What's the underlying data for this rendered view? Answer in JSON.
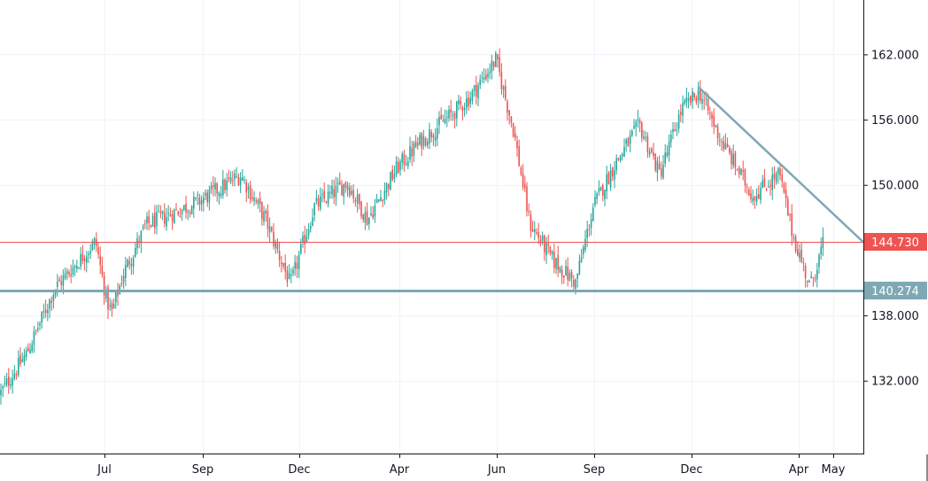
{
  "chart_data": {
    "type": "candlestick",
    "title": "",
    "xlabel": "",
    "ylabel": "",
    "ylim": [
      125.3,
      167.0
    ],
    "grid": true,
    "colors": {
      "up": "#26a69a",
      "down": "#ef5350",
      "grid": "#f0f3fa",
      "axis": "#131722",
      "resistance": "#ef5350",
      "support": "#7ea8b4",
      "trendline": "#7ea8b4"
    },
    "x_ticks": [
      "Jul",
      "Sep",
      "Dec",
      "Apr",
      "Jun",
      "Sep",
      "Dec",
      "Apr",
      "May"
    ],
    "y_ticks": [
      "162.000",
      "156.000",
      "150.000",
      "138.000",
      "132.000"
    ],
    "y_tick_values": [
      162,
      156,
      150,
      138,
      132
    ],
    "horizontal_lines": [
      {
        "price": 144.73,
        "label": "144.730",
        "color": "#ef5350",
        "line_width": 1
      },
      {
        "price": 140.274,
        "label": "140.274",
        "color": "#7ea8b4",
        "line_width": 3
      }
    ],
    "trendline": {
      "start": {
        "date": "Dec",
        "price": 158.9
      },
      "end": {
        "date": "May",
        "price": 144.73
      }
    },
    "price_anchors": [
      {
        "date": "start",
        "close": 130.8
      },
      {
        "date": "",
        "close": 134.5
      },
      {
        "date": "",
        "close": 140.5
      },
      {
        "date": "Jul",
        "close": 144.8
      },
      {
        "date": "",
        "close": 139.5
      },
      {
        "date": "",
        "close": 138.2
      },
      {
        "date": "",
        "close": 142.0
      },
      {
        "date": "",
        "close": 146.3
      },
      {
        "date": "Sep",
        "close": 148.5
      },
      {
        "date": "",
        "close": 150.9
      },
      {
        "date": "",
        "close": 146.8
      },
      {
        "date": "Dec",
        "close": 140.8
      },
      {
        "date": "",
        "close": 148.0
      },
      {
        "date": "",
        "close": 150.2
      },
      {
        "date": "",
        "close": 146.8
      },
      {
        "date": "Apr",
        "close": 151.5
      },
      {
        "date": "",
        "close": 154.0
      },
      {
        "date": "",
        "close": 156.5
      },
      {
        "date": "",
        "close": 158.0
      },
      {
        "date": "Jun",
        "close": 161.5
      },
      {
        "date": "",
        "close": 155.0
      },
      {
        "date": "",
        "close": 146.5
      },
      {
        "date": "",
        "close": 143.0
      },
      {
        "date": "Sep",
        "close": 141.0
      },
      {
        "date": "",
        "close": 148.0
      },
      {
        "date": "",
        "close": 152.0
      },
      {
        "date": "",
        "close": 155.5
      },
      {
        "date": "",
        "close": 151.0
      },
      {
        "date": "Dec",
        "close": 157.0
      },
      {
        "date": "",
        "close": 158.5
      },
      {
        "date": "",
        "close": 154.0
      },
      {
        "date": "",
        "close": 149.0
      },
      {
        "date": "",
        "close": 151.0
      },
      {
        "date": "Apr",
        "close": 145.5
      },
      {
        "date": "",
        "close": 140.6
      },
      {
        "date": "May",
        "close": 144.7
      }
    ]
  }
}
